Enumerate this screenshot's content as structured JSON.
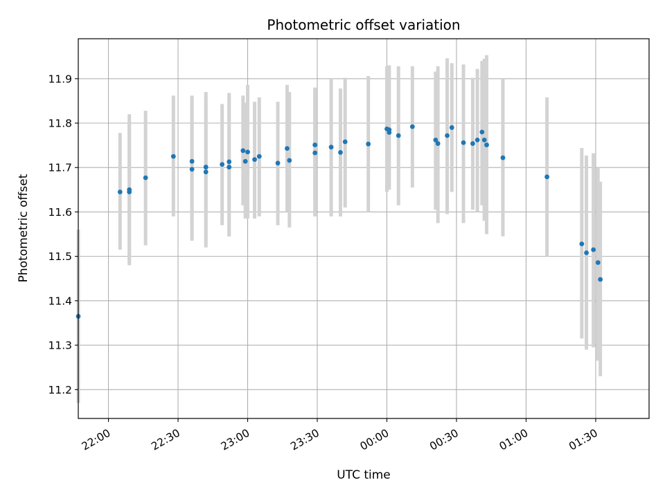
{
  "chart_data": {
    "type": "scatter",
    "title": "Photometric offset variation",
    "xlabel": "UTC time",
    "ylabel": "Photometric offset",
    "x_tick_labels": [
      "22:00",
      "22:30",
      "23:00",
      "23:30",
      "00:00",
      "00:30",
      "01:00",
      "01:30"
    ],
    "y_tick_labels": [
      "11.2",
      "11.3",
      "11.4",
      "11.5",
      "11.6",
      "11.7",
      "11.8",
      "11.9"
    ],
    "ylim": [
      11.135,
      11.99
    ],
    "xlim": [
      "21:47",
      "01:53"
    ],
    "grid": true,
    "colors": {
      "marker": "#1f77b4",
      "errorbar": "#d3d3d3",
      "grid": "#b0b0b0"
    },
    "series": [
      {
        "x": [
          "21:47",
          "22:05",
          "22:09",
          "22:09",
          "22:16",
          "22:28",
          "22:36",
          "22:36",
          "22:42",
          "22:42",
          "22:49",
          "22:52",
          "22:52",
          "22:58",
          "22:59",
          "23:00",
          "23:03",
          "23:05",
          "23:13",
          "23:17",
          "23:18",
          "23:29",
          "23:29",
          "23:36",
          "23:40",
          "23:42",
          "23:52",
          "00:00",
          "00:01",
          "00:01",
          "00:05",
          "00:11",
          "00:21",
          "00:22",
          "00:26",
          "00:28",
          "00:33",
          "00:37",
          "00:39",
          "00:41",
          "00:42",
          "00:43",
          "00:50",
          "01:09",
          "01:24",
          "01:26",
          "01:29",
          "01:31",
          "01:32"
        ],
        "y": [
          11.365,
          11.645,
          11.645,
          11.65,
          11.677,
          11.725,
          11.714,
          11.696,
          11.69,
          11.701,
          11.707,
          11.713,
          11.701,
          11.738,
          11.714,
          11.735,
          11.718,
          11.725,
          11.71,
          11.743,
          11.716,
          11.751,
          11.733,
          11.746,
          11.734,
          11.758,
          11.753,
          11.787,
          11.785,
          11.779,
          11.772,
          11.792,
          11.762,
          11.754,
          11.772,
          11.79,
          11.756,
          11.754,
          11.762,
          11.78,
          11.762,
          11.751,
          11.722,
          11.679,
          11.528,
          11.508,
          11.515,
          11.486,
          11.448
        ],
        "yerr_low": [
          11.17,
          11.515,
          11.485,
          11.48,
          11.525,
          11.59,
          11.565,
          11.535,
          11.535,
          11.52,
          11.57,
          11.545,
          11.545,
          11.615,
          11.585,
          11.585,
          11.585,
          11.59,
          11.57,
          11.6,
          11.565,
          11.625,
          11.59,
          11.59,
          11.59,
          11.61,
          11.6,
          11.645,
          11.65,
          11.655,
          11.615,
          11.655,
          11.605,
          11.575,
          11.595,
          11.645,
          11.575,
          11.605,
          11.6,
          11.615,
          11.58,
          11.55,
          11.545,
          11.5,
          11.315,
          11.29,
          11.295,
          11.265,
          11.23
        ],
        "yerr_high": [
          11.56,
          11.778,
          11.8,
          11.82,
          11.828,
          11.862,
          11.862,
          11.856,
          11.87,
          11.858,
          11.843,
          11.868,
          11.858,
          11.862,
          11.846,
          11.886,
          11.848,
          11.858,
          11.848,
          11.886,
          11.87,
          11.88,
          11.876,
          11.9,
          11.878,
          11.902,
          11.906,
          11.928,
          11.93,
          11.918,
          11.928,
          11.928,
          11.916,
          11.928,
          11.946,
          11.935,
          11.932,
          11.902,
          11.922,
          11.94,
          11.945,
          11.953,
          11.9,
          11.858,
          11.744,
          11.727,
          11.732,
          11.7,
          11.668
        ]
      }
    ]
  }
}
